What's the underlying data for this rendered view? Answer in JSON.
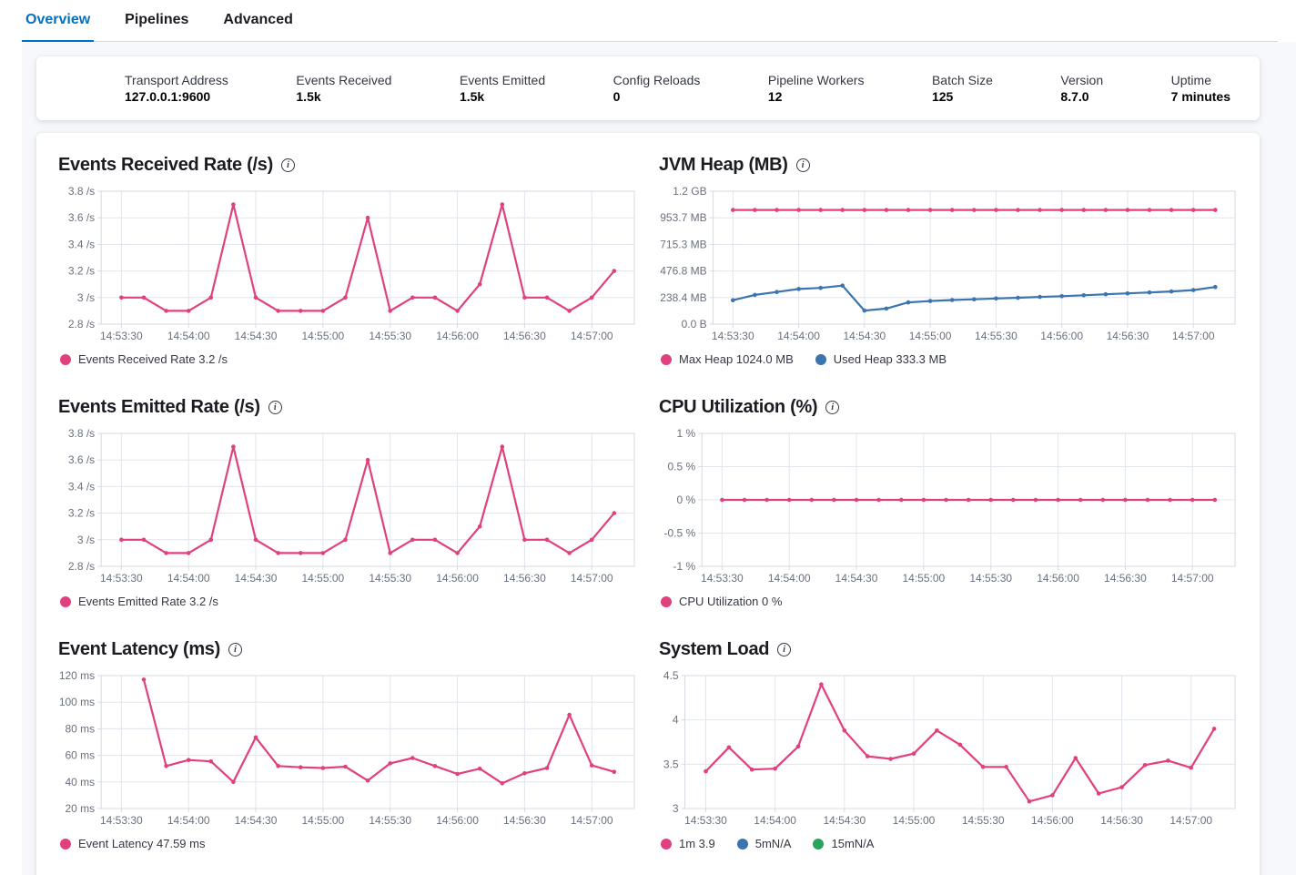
{
  "tabs": [
    {
      "label": "Overview",
      "active": true
    },
    {
      "label": "Pipelines",
      "active": false
    },
    {
      "label": "Advanced",
      "active": false
    }
  ],
  "summary": {
    "items": [
      {
        "label": "Transport Address",
        "value": "127.0.0.1:9600"
      },
      {
        "label": "Events Received",
        "value": "1.5k"
      },
      {
        "label": "Events Emitted",
        "value": "1.5k"
      },
      {
        "label": "Config Reloads",
        "value": "0"
      },
      {
        "label": "Pipeline Workers",
        "value": "12"
      },
      {
        "label": "Batch Size",
        "value": "125"
      },
      {
        "label": "Version",
        "value": "8.7.0"
      },
      {
        "label": "Uptime",
        "value": "7 minutes"
      }
    ]
  },
  "colors": {
    "accent_pink": "#e0417e",
    "accent_blue": "#3c74ad",
    "accent_green": "#2ca25f",
    "active_tab_blue": "#0071c2",
    "axis_text": "#69707d",
    "grid_line": "#e1e5ec",
    "plot_border": "#d4d9e2"
  },
  "chart_data": [
    {
      "type": "line",
      "title": "Events Received Rate (/s)",
      "x_tick_labels": [
        "14:53:30",
        "14:54:00",
        "14:54:30",
        "14:55:00",
        "14:55:30",
        "14:56:00",
        "14:56:30",
        "14:57:00"
      ],
      "x_first_point": "14:53:30",
      "x_interval_s": 10,
      "y_domain": [
        2.8,
        3.8
      ],
      "y_tick_values": [
        2.8,
        3,
        3.2,
        3.4,
        3.6,
        3.8
      ],
      "y_tick_labels": [
        "2.8 /s",
        "3 /s",
        "3.2 /s",
        "3.4 /s",
        "3.6 /s",
        "3.8 /s"
      ],
      "series": [
        {
          "name": "Events Received Rate",
          "color": "#e0417e",
          "values": [
            3,
            3,
            2.9,
            2.9,
            3,
            3.7,
            3,
            2.9,
            2.9,
            2.9,
            3,
            3.6,
            2.9,
            3,
            3,
            2.9,
            3.1,
            3.7,
            3,
            3,
            2.9,
            3,
            3.2
          ]
        }
      ],
      "legend": [
        {
          "label": "Events Received Rate 3.2 /s",
          "color": "#e0417e"
        }
      ]
    },
    {
      "type": "line",
      "title": "JVM Heap (MB)",
      "x_tick_labels": [
        "14:53:30",
        "14:54:00",
        "14:54:30",
        "14:55:00",
        "14:55:30",
        "14:56:00",
        "14:56:30",
        "14:57:00"
      ],
      "x_first_point": "14:53:30",
      "x_interval_s": 10,
      "y_domain": [
        0,
        1192
      ],
      "y_tick_values": [
        0,
        238.4,
        476.8,
        715.3,
        953.7,
        1192
      ],
      "y_tick_labels": [
        "0.0 B",
        "238.4 MB",
        "476.8 MB",
        "715.3 MB",
        "953.7 MB",
        "1.2 GB"
      ],
      "series": [
        {
          "name": "Max Heap",
          "color": "#e0417e",
          "values": [
            1024,
            1024,
            1024,
            1024,
            1024,
            1024,
            1024,
            1024,
            1024,
            1024,
            1024,
            1024,
            1024,
            1024,
            1024,
            1024,
            1024,
            1024,
            1024,
            1024,
            1024,
            1024,
            1024
          ]
        },
        {
          "name": "Used Heap",
          "color": "#3c74ad",
          "values": [
            215,
            262,
            288,
            315,
            325,
            345,
            122,
            140,
            195,
            207,
            216,
            223,
            230,
            237,
            244,
            251,
            259,
            268,
            276,
            284,
            293,
            305,
            333.3
          ]
        }
      ],
      "legend": [
        {
          "label": "Max Heap 1024.0 MB",
          "color": "#e0417e"
        },
        {
          "label": "Used Heap 333.3 MB",
          "color": "#3c74ad"
        }
      ]
    },
    {
      "type": "line",
      "title": "Events Emitted Rate (/s)",
      "x_tick_labels": [
        "14:53:30",
        "14:54:00",
        "14:54:30",
        "14:55:00",
        "14:55:30",
        "14:56:00",
        "14:56:30",
        "14:57:00"
      ],
      "x_first_point": "14:53:30",
      "x_interval_s": 10,
      "y_domain": [
        2.8,
        3.8
      ],
      "y_tick_values": [
        2.8,
        3,
        3.2,
        3.4,
        3.6,
        3.8
      ],
      "y_tick_labels": [
        "2.8 /s",
        "3 /s",
        "3.2 /s",
        "3.4 /s",
        "3.6 /s",
        "3.8 /s"
      ],
      "series": [
        {
          "name": "Events Emitted Rate",
          "color": "#e0417e",
          "values": [
            3,
            3,
            2.9,
            2.9,
            3,
            3.7,
            3,
            2.9,
            2.9,
            2.9,
            3,
            3.6,
            2.9,
            3,
            3,
            2.9,
            3.1,
            3.7,
            3,
            3,
            2.9,
            3,
            3.2
          ]
        }
      ],
      "legend": [
        {
          "label": "Events Emitted Rate 3.2 /s",
          "color": "#e0417e"
        }
      ]
    },
    {
      "type": "line",
      "title": "CPU Utilization (%)",
      "x_tick_labels": [
        "14:53:30",
        "14:54:00",
        "14:54:30",
        "14:55:00",
        "14:55:30",
        "14:56:00",
        "14:56:30",
        "14:57:00"
      ],
      "x_first_point": "14:53:30",
      "x_interval_s": 10,
      "y_domain": [
        -1,
        1
      ],
      "y_tick_values": [
        -1,
        -0.5,
        0,
        0.5,
        1
      ],
      "y_tick_labels": [
        "-1 %",
        "-0.5 %",
        "0 %",
        "0.5 %",
        "1 %"
      ],
      "series": [
        {
          "name": "CPU Utilization",
          "color": "#e0417e",
          "values": [
            0,
            0,
            0,
            0,
            0,
            0,
            0,
            0,
            0,
            0,
            0,
            0,
            0,
            0,
            0,
            0,
            0,
            0,
            0,
            0,
            0,
            0,
            0
          ]
        }
      ],
      "legend": [
        {
          "label": "CPU Utilization 0 %",
          "color": "#e0417e"
        }
      ]
    },
    {
      "type": "line",
      "title": "Event Latency (ms)",
      "x_tick_labels": [
        "14:53:30",
        "14:54:00",
        "14:54:30",
        "14:55:00",
        "14:55:30",
        "14:56:00",
        "14:56:30",
        "14:57:00"
      ],
      "x_first_point": "14:53:40",
      "x_interval_s": 10,
      "y_domain": [
        20,
        120
      ],
      "y_tick_values": [
        20,
        40,
        60,
        80,
        100,
        120
      ],
      "y_tick_labels": [
        "20 ms",
        "40 ms",
        "60 ms",
        "80 ms",
        "100 ms",
        "120 ms"
      ],
      "series": [
        {
          "name": "Event Latency",
          "color": "#e0417e",
          "values": [
            117,
            52,
            56.5,
            55.5,
            40,
            73.5,
            52,
            51,
            50.5,
            51.5,
            41,
            54,
            58,
            52,
            46,
            50,
            39,
            46.5,
            50.5,
            90.5,
            52.5,
            47.59
          ]
        }
      ],
      "legend": [
        {
          "label": "Event Latency 47.59 ms",
          "color": "#e0417e"
        }
      ]
    },
    {
      "type": "line",
      "title": "System Load",
      "x_tick_labels": [
        "14:53:30",
        "14:54:00",
        "14:54:30",
        "14:55:00",
        "14:55:30",
        "14:56:00",
        "14:56:30",
        "14:57:00"
      ],
      "x_first_point": "14:53:30",
      "x_interval_s": 10,
      "y_domain": [
        3,
        4.5
      ],
      "y_tick_values": [
        3,
        3.5,
        4,
        4.5
      ],
      "y_tick_labels": [
        "3",
        "3.5",
        "4",
        "4.5"
      ],
      "series": [
        {
          "name": "1m",
          "color": "#e0417e",
          "values": [
            3.42,
            3.69,
            3.44,
            3.45,
            3.7,
            4.4,
            3.88,
            3.59,
            3.56,
            3.62,
            3.88,
            3.72,
            3.47,
            3.47,
            3.08,
            3.15,
            3.57,
            3.17,
            3.24,
            3.49,
            3.54,
            3.46,
            3.9
          ]
        }
      ],
      "legend": [
        {
          "label": "1m 3.9",
          "color": "#e0417e"
        },
        {
          "label": "5mN/A",
          "color": "#3c74ad"
        },
        {
          "label": "15mN/A",
          "color": "#2ca25f"
        }
      ]
    }
  ]
}
